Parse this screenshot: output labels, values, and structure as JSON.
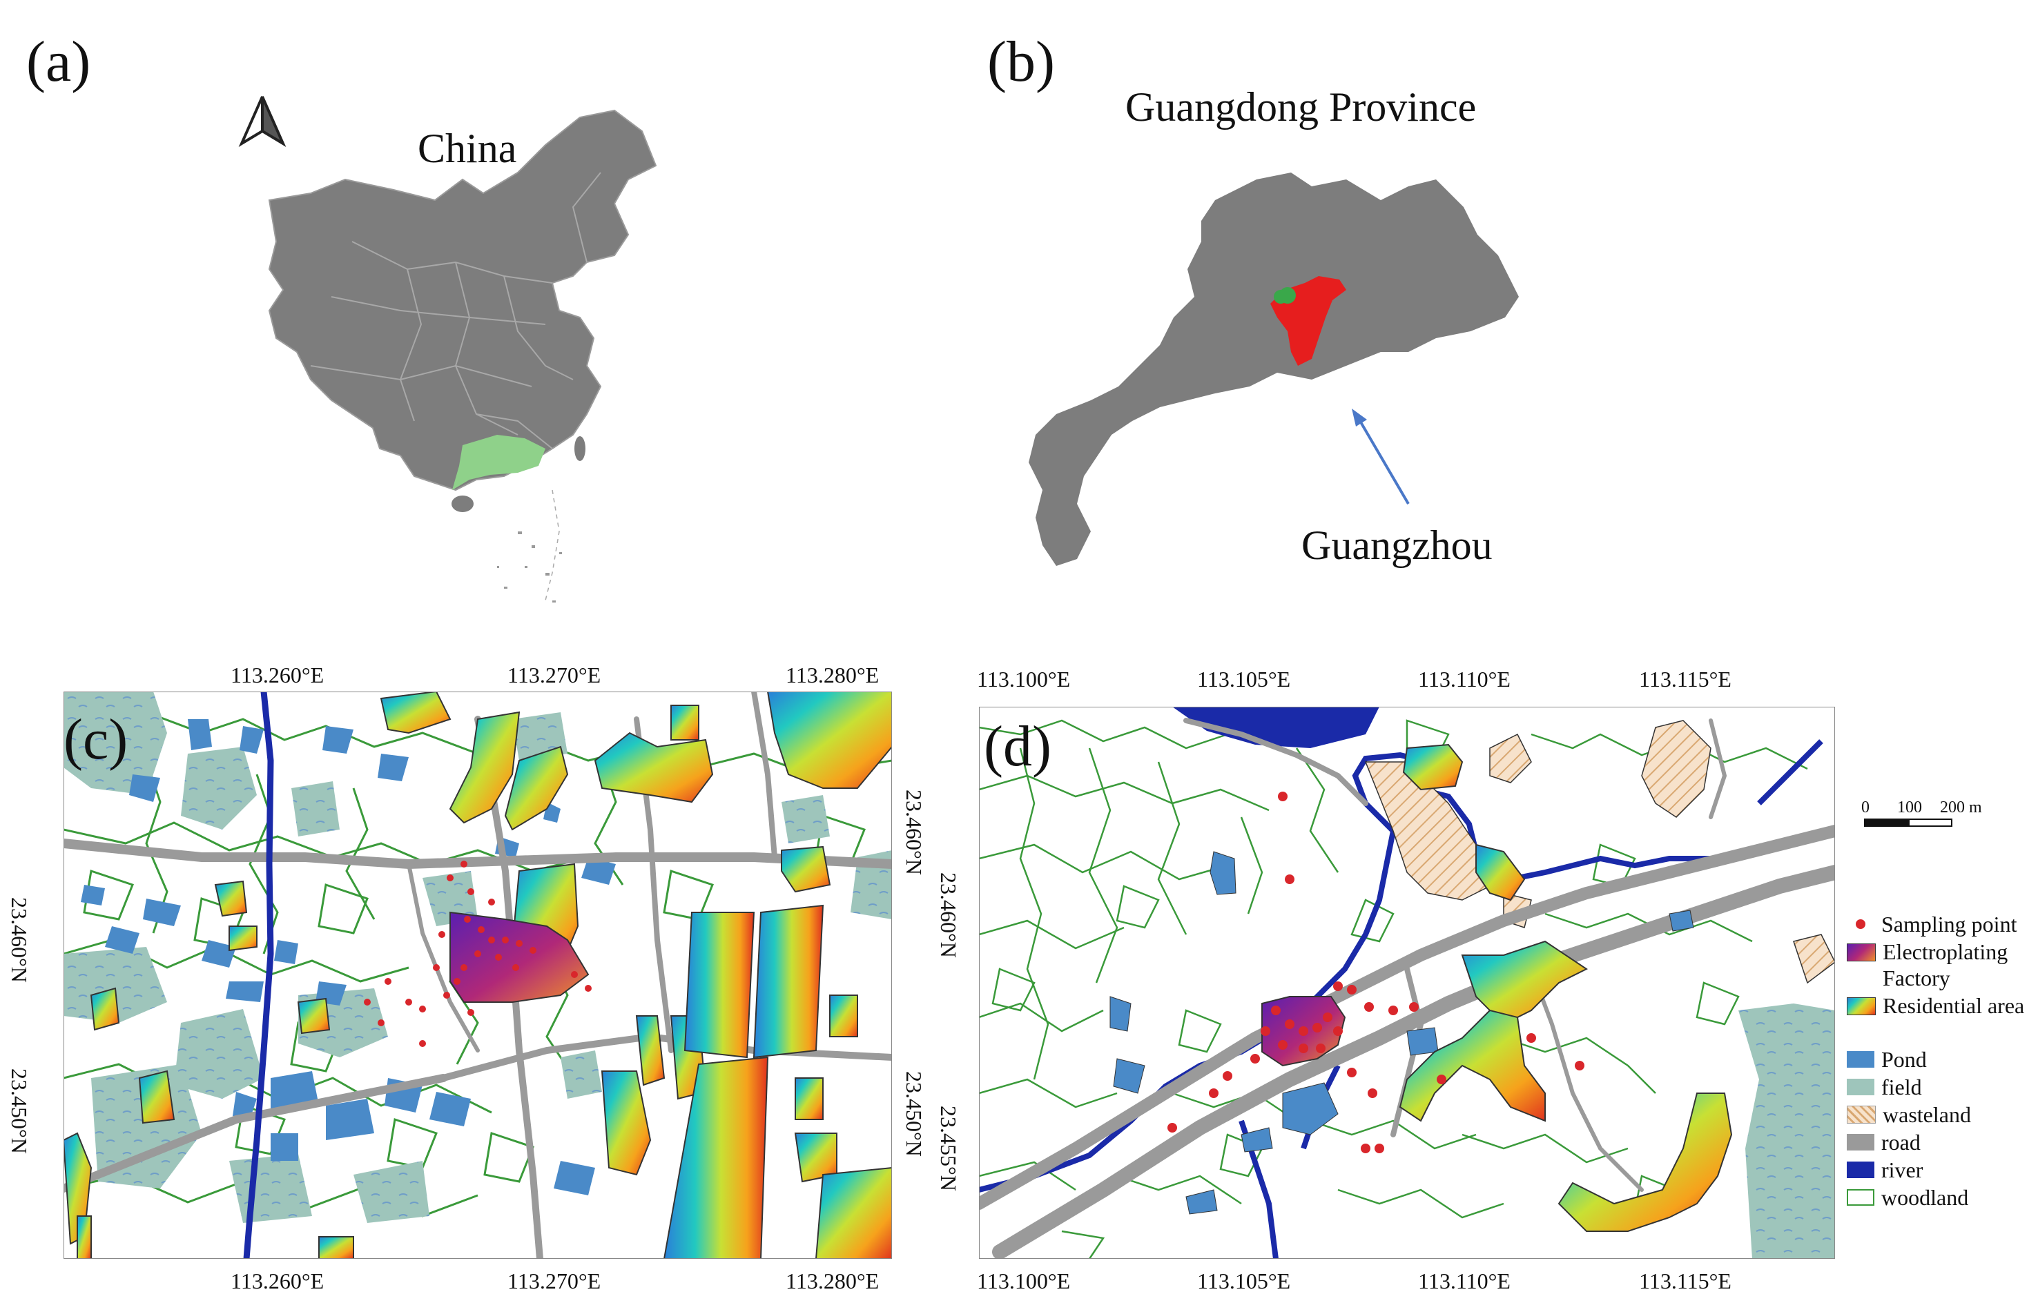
{
  "panels": {
    "a": {
      "label": "(a)",
      "region_label": "China"
    },
    "b": {
      "label": "(b)",
      "title": "Guangdong Province",
      "city_label": "Guangzhou"
    },
    "c": {
      "label": "(c)",
      "lon_ticks": [
        "113.260°E",
        "113.270°E",
        "113.280°E"
      ],
      "lat_ticks": [
        "23.460°N",
        "23.450°N"
      ]
    },
    "d": {
      "label": "(d)",
      "lon_ticks": [
        "113.100°E",
        "113.105°E",
        "113.110°E",
        "113.115°E"
      ],
      "lat_ticks": [
        "23.460°N",
        "23.455°N"
      ],
      "scale_bar": {
        "labels": [
          "0",
          "100",
          "200 m"
        ]
      }
    }
  },
  "legend": [
    {
      "label": "Sampling point",
      "symbol": "dot",
      "color": "#d9262b"
    },
    {
      "label": "Electroplating Factory",
      "symbol": "gradient-purple",
      "color": "#7a1fa0"
    },
    {
      "label": "Residential area",
      "symbol": "gradient-rainbow",
      "color": "#f5a623"
    },
    {
      "label": "Pond",
      "symbol": "fill",
      "color": "#4a8ac8"
    },
    {
      "label": "field",
      "symbol": "fill",
      "color": "#9ec5bb"
    },
    {
      "label": "wasteland",
      "symbol": "hatch",
      "color": "#f3d4b3"
    },
    {
      "label": "road",
      "symbol": "fill",
      "color": "#9a9a9a"
    },
    {
      "label": "river",
      "symbol": "fill",
      "color": "#1a2aa8"
    },
    {
      "label": "woodland",
      "symbol": "outline",
      "color": "#3a9a3a"
    }
  ],
  "colors": {
    "landmass": "#7d7d7d",
    "guangdong_highlight": "#8fd18a",
    "guangzhou_highlight": "#e61e1e",
    "site_marker": "#3aa84a",
    "arrow": "#4a78c8"
  },
  "icons": {
    "north_arrow": "north-arrow-icon"
  }
}
